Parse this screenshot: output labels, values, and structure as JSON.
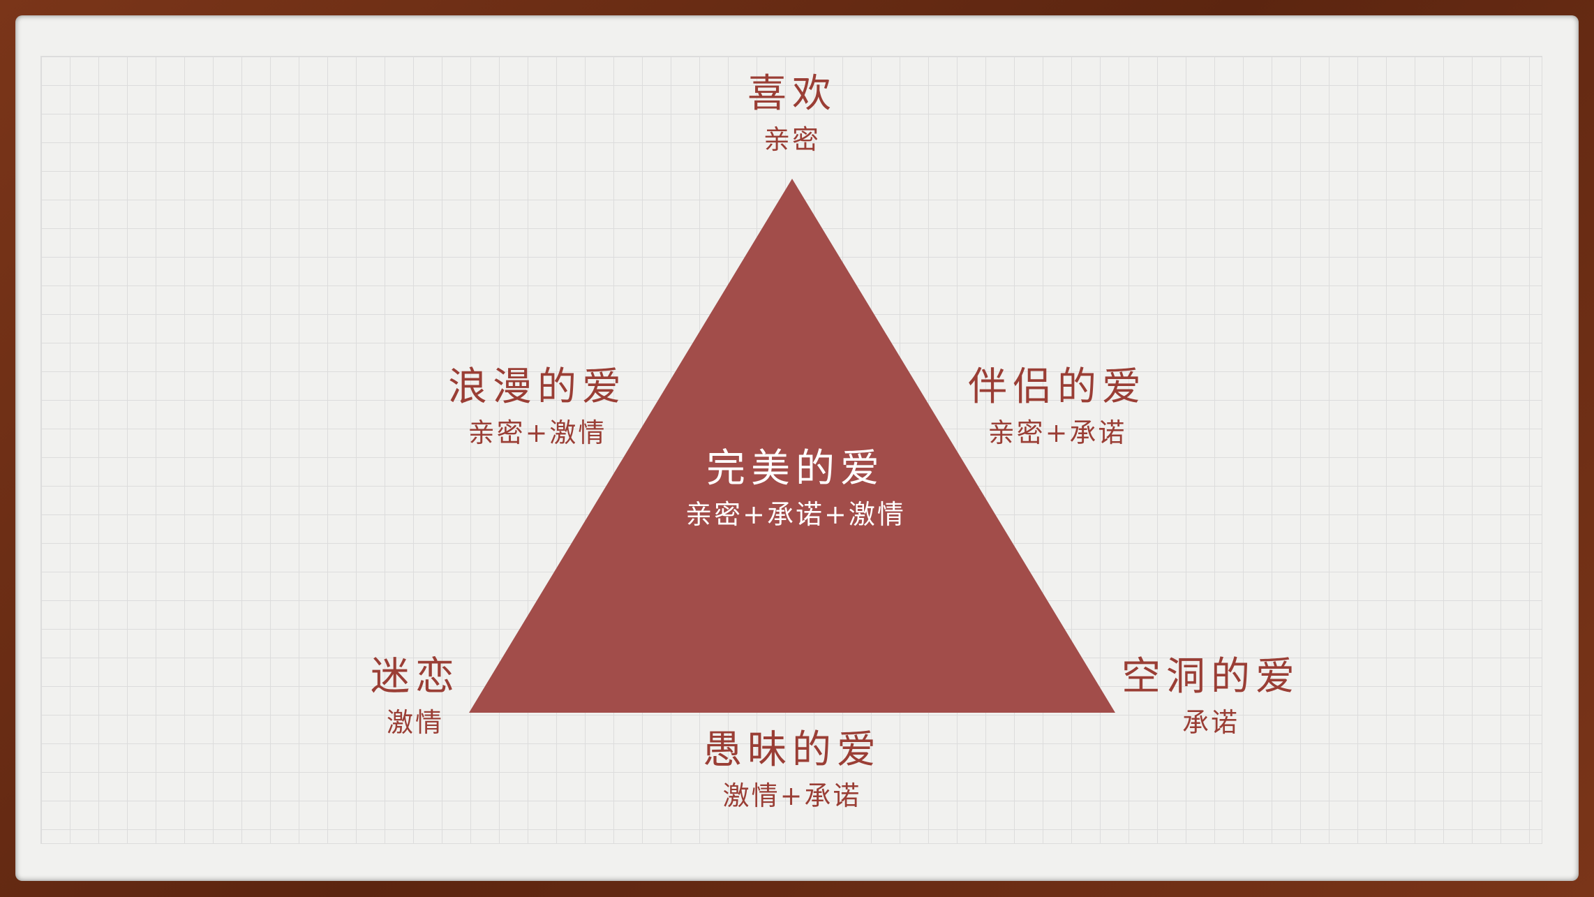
{
  "colors": {
    "triangle_fill": "#a24d4a",
    "label_text": "#9a3e35",
    "inner_text": "#ffffff"
  },
  "vertices": {
    "top": {
      "title": "喜欢",
      "sub": "亲密"
    },
    "bottom_left": {
      "title": "迷恋",
      "sub": "激情"
    },
    "bottom_right": {
      "title": "空洞的爱",
      "sub": "承诺"
    }
  },
  "edges": {
    "left": {
      "title": "浪漫的爱",
      "sub": "亲密+激情"
    },
    "right": {
      "title": "伴侣的爱",
      "sub": "亲密+承诺"
    },
    "bottom": {
      "title": "愚昧的爱",
      "sub": "激情+承诺"
    }
  },
  "center": {
    "title": "完美的爱",
    "sub": "亲密+承诺+激情"
  }
}
